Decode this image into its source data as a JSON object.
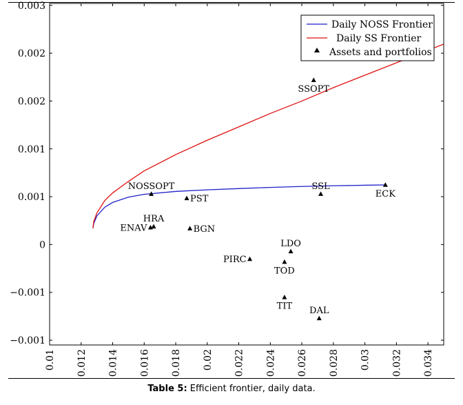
{
  "chart_data": {
    "type": "scatter",
    "xlim": [
      0.01,
      0.035
    ],
    "ylim": [
      -0.00105,
      0.00252
    ],
    "x_ticks": [
      "0.01",
      "0.012",
      "0.014",
      "0.016",
      "0.018",
      "0.02",
      "0.022",
      "0.024",
      "0.026",
      "0.028",
      "0.03",
      "0.032",
      "0.034"
    ],
    "x_tick_values": [
      0.01,
      0.012,
      0.014,
      0.016,
      0.018,
      0.02,
      0.022,
      0.024,
      0.026,
      0.028,
      0.03,
      0.032,
      0.034
    ],
    "y_ticks": [
      "0.003",
      "0.002",
      "0.002",
      "0.001",
      "0.001",
      "0",
      "−0.001",
      "−0.001"
    ],
    "y_tick_values": [
      0.0025,
      0.002,
      0.0015,
      0.001,
      0.0005,
      0,
      -0.0005,
      -0.001
    ],
    "legend_position": "top-right",
    "series": [
      {
        "name": "Daily NOSS Frontier",
        "kind": "line",
        "color": "#1f1fc8",
        "points": [
          [
            0.01275,
            0.00017
          ],
          [
            0.0128,
            0.00022
          ],
          [
            0.013,
            0.0003
          ],
          [
            0.0135,
            0.00039
          ],
          [
            0.014,
            0.00044
          ],
          [
            0.015,
            0.000495
          ],
          [
            0.016,
            0.000525
          ],
          [
            0.018,
            0.000555
          ],
          [
            0.02,
            0.000572
          ],
          [
            0.022,
            0.000585
          ],
          [
            0.024,
            0.000597
          ],
          [
            0.026,
            0.000607
          ],
          [
            0.028,
            0.000614
          ],
          [
            0.03,
            0.00062
          ],
          [
            0.0313,
            0.000623
          ]
        ]
      },
      {
        "name": "Daily SS Frontier",
        "kind": "line",
        "color": "#e01010",
        "points": [
          [
            0.01275,
            0.00017
          ],
          [
            0.0128,
            0.00024
          ],
          [
            0.013,
            0.00033
          ],
          [
            0.0135,
            0.00046
          ],
          [
            0.014,
            0.00054
          ],
          [
            0.015,
            0.00066
          ],
          [
            0.016,
            0.00077
          ],
          [
            0.018,
            0.00094
          ],
          [
            0.02,
            0.00109
          ],
          [
            0.022,
            0.00123
          ],
          [
            0.024,
            0.00137
          ],
          [
            0.026,
            0.0015
          ],
          [
            0.028,
            0.00164
          ],
          [
            0.03,
            0.00177
          ],
          [
            0.032,
            0.0019
          ],
          [
            0.034,
            0.00203
          ],
          [
            0.035,
            0.002095
          ]
        ]
      },
      {
        "name": "Assets and portfolios",
        "kind": "marker",
        "points": [
          {
            "label": "NOSSOPT",
            "x": 0.01645,
            "y": 0.00053,
            "pos": "above"
          },
          {
            "label": "PST",
            "x": 0.0187,
            "y": 0.000485,
            "pos": "right"
          },
          {
            "label": "HRA",
            "x": 0.0166,
            "y": 0.00019,
            "pos": "above"
          },
          {
            "label": "ENAV",
            "x": 0.0164,
            "y": 0.00018,
            "pos": "left"
          },
          {
            "label": "BGN",
            "x": 0.0189,
            "y": 0.00017,
            "pos": "right"
          },
          {
            "label": "SSOPT",
            "x": 0.02675,
            "y": 0.00172,
            "pos": "below"
          },
          {
            "label": "SSL",
            "x": 0.0272,
            "y": 0.00053,
            "pos": "above"
          },
          {
            "label": "ECK",
            "x": 0.0313,
            "y": 0.000625,
            "pos": "below"
          },
          {
            "label": "LDO",
            "x": 0.0253,
            "y": -7e-05,
            "pos": "above"
          },
          {
            "label": "PIRC",
            "x": 0.0227,
            "y": -0.00015,
            "pos": "left"
          },
          {
            "label": "TOD",
            "x": 0.0249,
            "y": -0.00018,
            "pos": "below"
          },
          {
            "label": "TIT",
            "x": 0.0249,
            "y": -0.00055,
            "pos": "below"
          },
          {
            "label": "DAL",
            "x": 0.0271,
            "y": -0.00077,
            "pos": "above"
          }
        ]
      }
    ]
  },
  "caption": {
    "label": "Table 5:",
    "text": " Efficient frontier, daily data."
  }
}
